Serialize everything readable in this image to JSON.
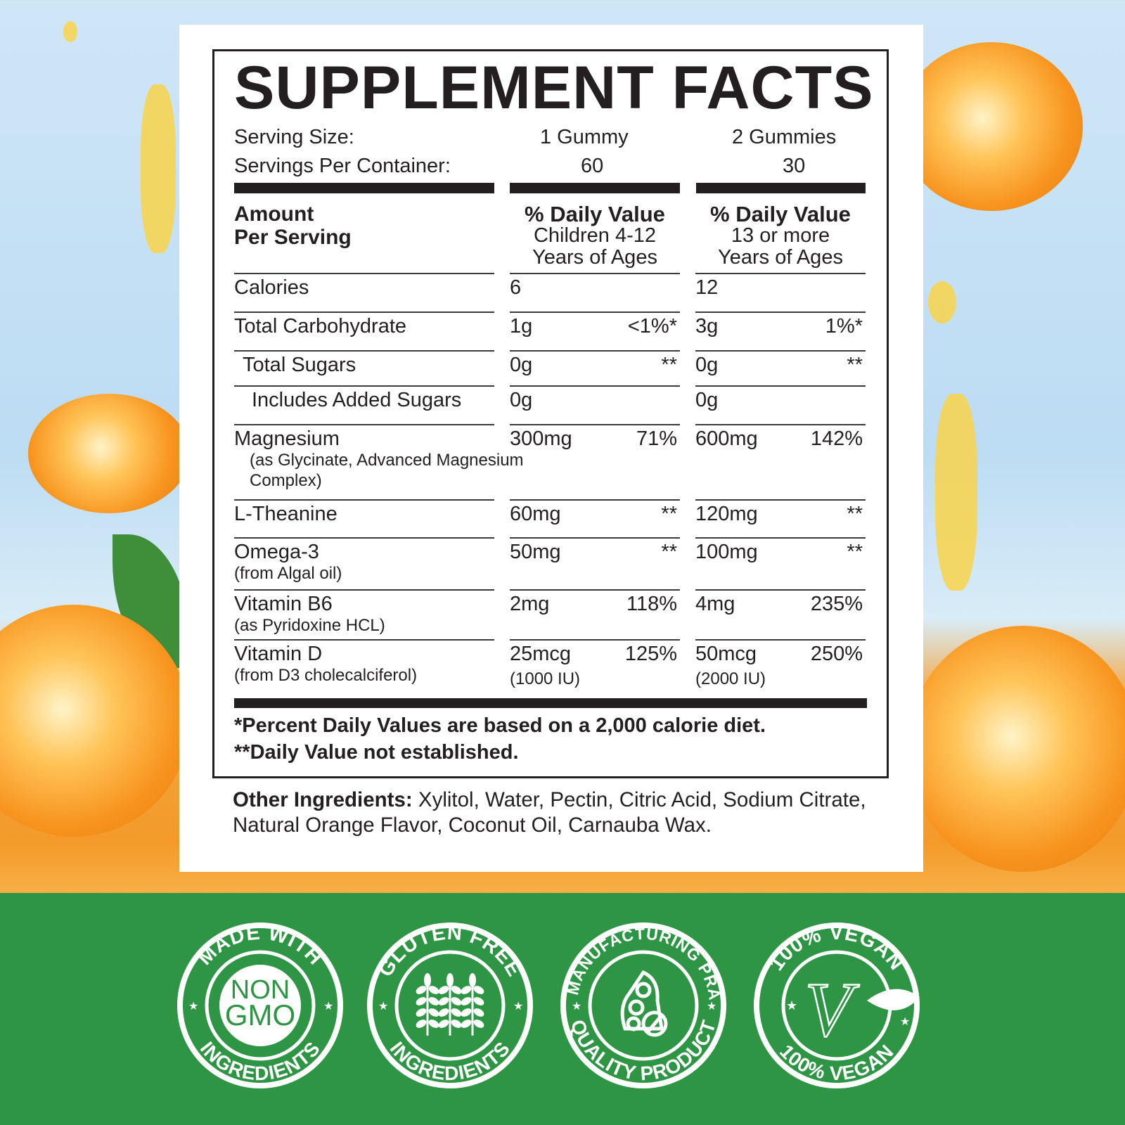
{
  "label": {
    "title": "SUPPLEMENT FACTS",
    "serving_size_label": "Serving Size:",
    "serving_size_children": "1 Gummy",
    "serving_size_adults": "2 Gummies",
    "servings_per_container_label": "Servings Per Container:",
    "servings_children": "60",
    "servings_adults": "30",
    "header": {
      "amount": [
        "Amount",
        "Per Serving"
      ],
      "children": [
        "% Daily Value",
        "Children 4-12",
        "Years of Ages"
      ],
      "adults": [
        "% Daily Value",
        "13 or more",
        "Years of Ages"
      ]
    },
    "rows": [
      {
        "name": "Calories",
        "sub": "",
        "a1": "6",
        "p1": "",
        "a1b": "",
        "a2": "12",
        "p2": "",
        "a2b": ""
      },
      {
        "name": "Total Carbohydrate",
        "sub": "",
        "a1": "1g",
        "p1": "<1%*",
        "a1b": "",
        "a2": "3g",
        "p2": "1%*",
        "a2b": ""
      },
      {
        "name": "Total Sugars",
        "sub": "",
        "a1": "0g",
        "p1": "**",
        "a1b": "",
        "a2": "0g",
        "p2": "**",
        "a2b": ""
      },
      {
        "name": "Includes Added Sugars",
        "sub": "",
        "a1": "0g",
        "p1": "",
        "a1b": "",
        "a2": "0g",
        "p2": "",
        "a2b": ""
      },
      {
        "name": "Magnesium",
        "sub": "(as Glycinate, Advanced Magnesium Complex)",
        "a1": "300mg",
        "p1": "71%",
        "a1b": "",
        "a2": "600mg",
        "p2": "142%",
        "a2b": ""
      },
      {
        "name": "L-Theanine",
        "sub": "",
        "a1": "60mg",
        "p1": "**",
        "a1b": "",
        "a2": "120mg",
        "p2": "**",
        "a2b": ""
      },
      {
        "name": "Omega-3",
        "sub": "(from Algal oil)",
        "a1": "50mg",
        "p1": "**",
        "a1b": "",
        "a2": "100mg",
        "p2": "**",
        "a2b": ""
      },
      {
        "name": "Vitamin B6",
        "sub": "(as Pyridoxine HCL)",
        "a1": "2mg",
        "p1": "118%",
        "a1b": "",
        "a2": "4mg",
        "p2": "235%",
        "a2b": ""
      },
      {
        "name": "Vitamin D",
        "sub": "(from D3 cholecalciferol)",
        "a1": "25mcg",
        "p1": "125%",
        "a1b": "(1000 IU)",
        "a2": "50mcg",
        "p2": "250%",
        "a2b": "(2000 IU)"
      }
    ],
    "footnote_1": "*Percent Daily Values are based on a 2,000 calorie diet.",
    "footnote_2": "**Daily Value not established.",
    "other_ingredients_label": "Other Ingredients:",
    "other_ingredients": " Xylitol, Water, Pectin, Citric Acid, Sodium Citrate, Natural Orange Flavor, Coconut Oil, Carnauba Wax."
  },
  "badges": [
    {
      "top": "MADE WITH",
      "center": [
        "NON",
        "GMO"
      ],
      "bottom": "INGREDIENTS",
      "icon": "non-gmo-icon"
    },
    {
      "top": "GLUTEN FREE",
      "bottom": "INGREDIENTS",
      "icon": "wheat-icon"
    },
    {
      "top": "GOOD MANUFACTURING PRACTICE",
      "bottom": "QUALITY PRODUCT",
      "icon": "capsule-pills-icon"
    },
    {
      "top": "100% VEGAN",
      "bottom": "100% VEGAN",
      "icon": "vegan-v-leaf-icon"
    }
  ],
  "colors": {
    "badge_band": "#2e9545",
    "label_text": "#231f20",
    "background_sky": "#cfe6f7",
    "fruit": "#f7931e"
  }
}
